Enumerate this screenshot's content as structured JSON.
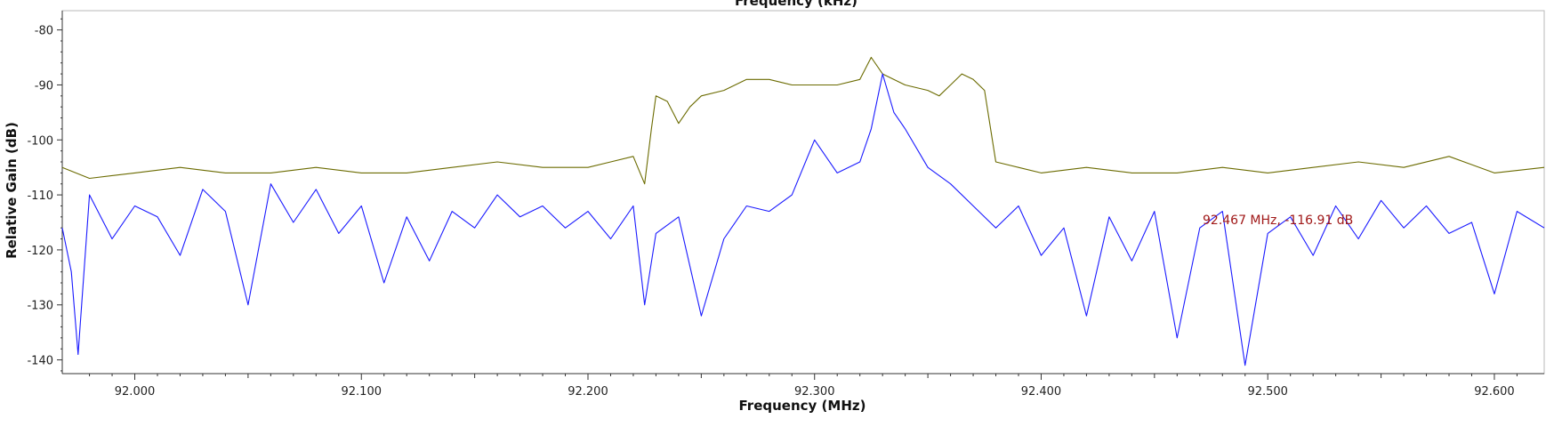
{
  "chart_data": {
    "type": "line",
    "title": "",
    "top_title_partial": "Frequency (kHz)",
    "xlabel": "Frequency (MHz)",
    "ylabel": "Relative Gain (dB)",
    "xlim": [
      91.968,
      92.622
    ],
    "ylim": [
      -142.5,
      -76.5
    ],
    "x_ticks": [
      92.0,
      92.1,
      92.2,
      92.3,
      92.4,
      92.5,
      92.6
    ],
    "x_tick_labels": [
      "92.000",
      "92.100",
      "92.200",
      "92.300",
      "92.400",
      "92.500",
      "92.600"
    ],
    "y_ticks": [
      -80,
      -90,
      -100,
      -110,
      -120,
      -130,
      -140
    ],
    "y_tick_labels": [
      "-80",
      "-90",
      "-100",
      "-110",
      "-120",
      "-130",
      "-140"
    ],
    "grid": false,
    "marker_label": "92.467 MHz, -116.91 dB",
    "marker_point": {
      "x": 92.467,
      "y": -116.91
    },
    "series": [
      {
        "color": "#6b6b00",
        "points": [
          [
            91.968,
            -105
          ],
          [
            91.98,
            -107
          ],
          [
            92.0,
            -106
          ],
          [
            92.02,
            -105
          ],
          [
            92.04,
            -106
          ],
          [
            92.06,
            -106
          ],
          [
            92.08,
            -105
          ],
          [
            92.1,
            -106
          ],
          [
            92.12,
            -106
          ],
          [
            92.14,
            -105
          ],
          [
            92.16,
            -104
          ],
          [
            92.18,
            -105
          ],
          [
            92.2,
            -105
          ],
          [
            92.21,
            -104
          ],
          [
            92.22,
            -103
          ],
          [
            92.225,
            -108
          ],
          [
            92.228,
            -98
          ],
          [
            92.23,
            -92
          ],
          [
            92.235,
            -93
          ],
          [
            92.24,
            -97
          ],
          [
            92.245,
            -94
          ],
          [
            92.25,
            -92
          ],
          [
            92.26,
            -91
          ],
          [
            92.27,
            -89
          ],
          [
            92.28,
            -89
          ],
          [
            92.29,
            -90
          ],
          [
            92.3,
            -90
          ],
          [
            92.31,
            -90
          ],
          [
            92.32,
            -89
          ],
          [
            92.325,
            -85
          ],
          [
            92.33,
            -88
          ],
          [
            92.34,
            -90
          ],
          [
            92.35,
            -91
          ],
          [
            92.355,
            -92
          ],
          [
            92.36,
            -90
          ],
          [
            92.365,
            -88
          ],
          [
            92.37,
            -89
          ],
          [
            92.375,
            -91
          ],
          [
            92.38,
            -104
          ],
          [
            92.39,
            -105
          ],
          [
            92.4,
            -106
          ],
          [
            92.42,
            -105
          ],
          [
            92.44,
            -106
          ],
          [
            92.46,
            -106
          ],
          [
            92.48,
            -105
          ],
          [
            92.5,
            -106
          ],
          [
            92.52,
            -105
          ],
          [
            92.54,
            -104
          ],
          [
            92.56,
            -105
          ],
          [
            92.58,
            -103
          ],
          [
            92.6,
            -106
          ],
          [
            92.622,
            -105
          ]
        ]
      },
      {
        "color": "#1a1aff",
        "points": [
          [
            91.968,
            -116
          ],
          [
            91.972,
            -124
          ],
          [
            91.975,
            -139
          ],
          [
            91.98,
            -110
          ],
          [
            91.99,
            -118
          ],
          [
            92.0,
            -112
          ],
          [
            92.01,
            -114
          ],
          [
            92.02,
            -121
          ],
          [
            92.03,
            -109
          ],
          [
            92.04,
            -113
          ],
          [
            92.05,
            -130
          ],
          [
            92.06,
            -108
          ],
          [
            92.07,
            -115
          ],
          [
            92.08,
            -109
          ],
          [
            92.09,
            -117
          ],
          [
            92.1,
            -112
          ],
          [
            92.11,
            -126
          ],
          [
            92.12,
            -114
          ],
          [
            92.13,
            -122
          ],
          [
            92.14,
            -113
          ],
          [
            92.15,
            -116
          ],
          [
            92.16,
            -110
          ],
          [
            92.17,
            -114
          ],
          [
            92.18,
            -112
          ],
          [
            92.19,
            -116
          ],
          [
            92.2,
            -113
          ],
          [
            92.21,
            -118
          ],
          [
            92.22,
            -112
          ],
          [
            92.225,
            -130
          ],
          [
            92.23,
            -117
          ],
          [
            92.24,
            -114
          ],
          [
            92.25,
            -132
          ],
          [
            92.26,
            -118
          ],
          [
            92.27,
            -112
          ],
          [
            92.28,
            -113
          ],
          [
            92.29,
            -110
          ],
          [
            92.3,
            -100
          ],
          [
            92.31,
            -106
          ],
          [
            92.32,
            -104
          ],
          [
            92.325,
            -98
          ],
          [
            92.33,
            -88
          ],
          [
            92.335,
            -95
          ],
          [
            92.34,
            -98
          ],
          [
            92.35,
            -105
          ],
          [
            92.36,
            -108
          ],
          [
            92.37,
            -112
          ],
          [
            92.38,
            -116
          ],
          [
            92.39,
            -112
          ],
          [
            92.4,
            -121
          ],
          [
            92.41,
            -116
          ],
          [
            92.42,
            -132
          ],
          [
            92.43,
            -114
          ],
          [
            92.44,
            -122
          ],
          [
            92.45,
            -113
          ],
          [
            92.46,
            -136
          ],
          [
            92.47,
            -116
          ],
          [
            92.48,
            -113
          ],
          [
            92.49,
            -141
          ],
          [
            92.5,
            -117
          ],
          [
            92.51,
            -114
          ],
          [
            92.52,
            -121
          ],
          [
            92.53,
            -112
          ],
          [
            92.54,
            -118
          ],
          [
            92.55,
            -111
          ],
          [
            92.56,
            -116
          ],
          [
            92.57,
            -112
          ],
          [
            92.58,
            -117
          ],
          [
            92.59,
            -115
          ],
          [
            92.6,
            -128
          ],
          [
            92.61,
            -113
          ],
          [
            92.622,
            -116
          ]
        ]
      }
    ]
  }
}
